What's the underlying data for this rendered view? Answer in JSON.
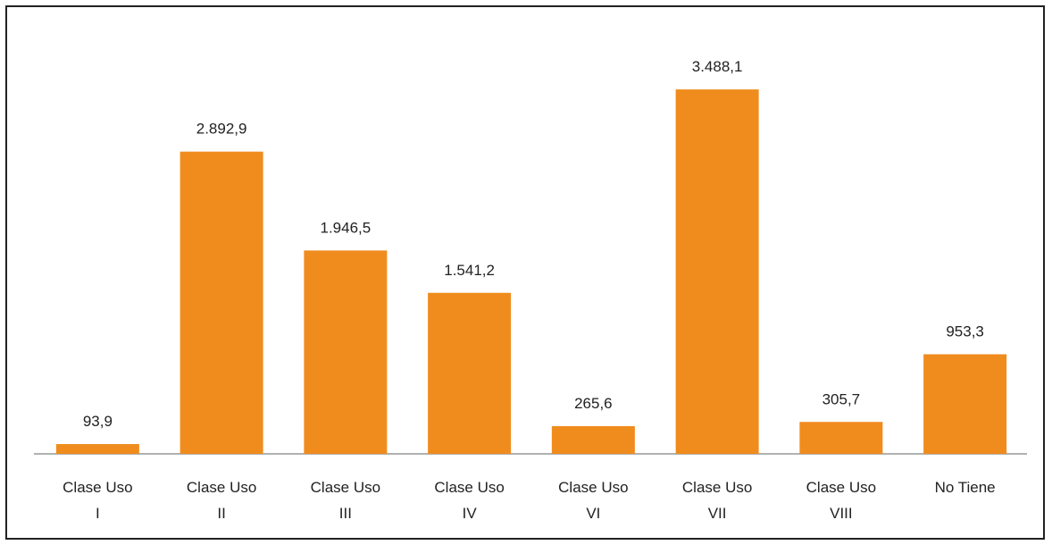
{
  "chart_data": {
    "type": "bar",
    "categories": [
      "Clase Uso\nI",
      "Clase Uso\nII",
      "Clase Uso\nIII",
      "Clase Uso\nIV",
      "Clase Uso\nVI",
      "Clase Uso\nVII",
      "Clase Uso\nVIII",
      "No Tiene"
    ],
    "values": [
      93.9,
      2892.9,
      1946.5,
      1541.2,
      265.6,
      3488.1,
      305.7,
      953.3
    ],
    "value_labels": [
      "93,9",
      "2.892,9",
      "1.946,5",
      "1.541,2",
      "265,6",
      "3.488,1",
      "305,7",
      "953,3"
    ],
    "color": "#f08c1e",
    "ylim": [
      0,
      3600
    ]
  }
}
